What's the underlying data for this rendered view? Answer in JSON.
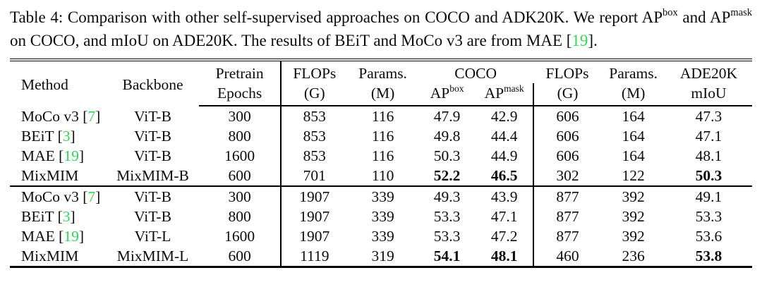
{
  "colors": {
    "citation_green": "#2fd858"
  },
  "caption": {
    "part1": "Table 4: Comparison with other self-supervised approaches on COCO and ADK20K. We report AP",
    "sup1": "box",
    "part2": " and AP",
    "sup2": "mask",
    "part3": " on COCO, and mIoU on ADE20K. The results of BEiT and MoCo v3 are from MAE [",
    "ref": "19",
    "part4": "]."
  },
  "table": {
    "header": {
      "method": "Method",
      "backbone": "Backbone",
      "pretrain": "Pretrain",
      "epochs": "Epochs",
      "flops": "FLOPs",
      "g": "(G)",
      "params": "Params.",
      "m": "(M)",
      "coco": "COCO",
      "ap": "AP",
      "box": "box",
      "mask": "mask",
      "ade20k": "ADE20K",
      "miou": "mIoU"
    },
    "groups": [
      {
        "rows": [
          {
            "method": "MoCo v3",
            "ref": "7",
            "backbone": "ViT-B",
            "epochs": "300",
            "flops_det": "853",
            "params_det": "116",
            "ap_box": "47.9",
            "ap_mask": "42.9",
            "flops_seg": "606",
            "params_seg": "164",
            "miou": "47.3",
            "bold": []
          },
          {
            "method": "BEiT",
            "ref": "3",
            "backbone": "ViT-B",
            "epochs": "800",
            "flops_det": "853",
            "params_det": "116",
            "ap_box": "49.8",
            "ap_mask": "44.4",
            "flops_seg": "606",
            "params_seg": "164",
            "miou": "47.1",
            "bold": []
          },
          {
            "method": "MAE",
            "ref": "19",
            "backbone": "ViT-B",
            "epochs": "1600",
            "flops_det": "853",
            "params_det": "116",
            "ap_box": "50.3",
            "ap_mask": "44.9",
            "flops_seg": "606",
            "params_seg": "164",
            "miou": "48.1",
            "bold": []
          },
          {
            "method": "MixMIM",
            "ref": null,
            "backbone": "MixMIM-B",
            "epochs": "600",
            "flops_det": "701",
            "params_det": "110",
            "ap_box": "52.2",
            "ap_mask": "46.5",
            "flops_seg": "302",
            "params_seg": "122",
            "miou": "50.3",
            "bold": [
              "ap_box",
              "ap_mask",
              "miou"
            ]
          }
        ]
      },
      {
        "rows": [
          {
            "method": "MoCo v3",
            "ref": "7",
            "backbone": "ViT-B",
            "epochs": "300",
            "flops_det": "1907",
            "params_det": "339",
            "ap_box": "49.3",
            "ap_mask": "43.9",
            "flops_seg": "877",
            "params_seg": "392",
            "miou": "49.1",
            "bold": []
          },
          {
            "method": "BEiT",
            "ref": "3",
            "backbone": "ViT-B",
            "epochs": "800",
            "flops_det": "1907",
            "params_det": "339",
            "ap_box": "53.3",
            "ap_mask": "47.1",
            "flops_seg": "877",
            "params_seg": "392",
            "miou": "53.3",
            "bold": []
          },
          {
            "method": "MAE",
            "ref": "19",
            "backbone": "ViT-L",
            "epochs": "1600",
            "flops_det": "1907",
            "params_det": "339",
            "ap_box": "53.3",
            "ap_mask": "47.2",
            "flops_seg": "877",
            "params_seg": "392",
            "miou": "53.6",
            "bold": []
          },
          {
            "method": "MixMIM",
            "ref": null,
            "backbone": "MixMIM-L",
            "epochs": "600",
            "flops_det": "1119",
            "params_det": "319",
            "ap_box": "54.1",
            "ap_mask": "48.1",
            "flops_seg": "460",
            "params_seg": "236",
            "miou": "53.8",
            "bold": [
              "ap_box",
              "ap_mask",
              "miou"
            ]
          }
        ]
      }
    ]
  }
}
